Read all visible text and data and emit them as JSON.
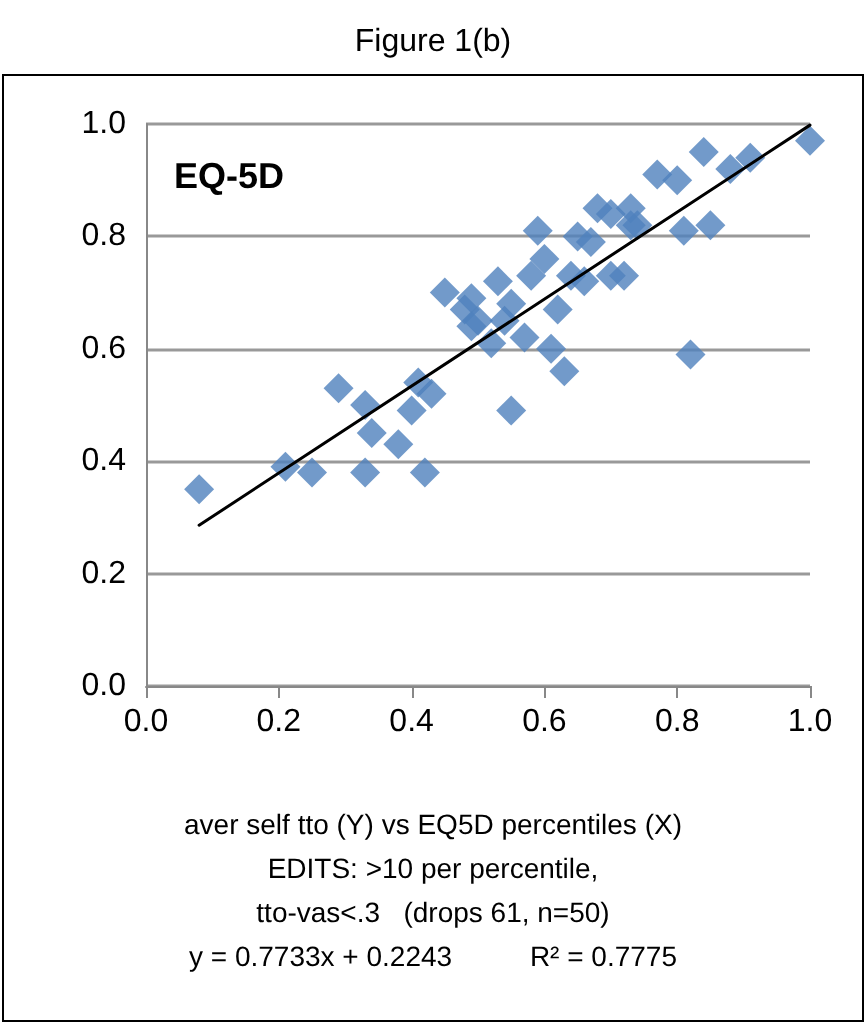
{
  "chart_data": {
    "type": "scatter",
    "title": "Figure 1(b)",
    "annotations": [
      "EQ-5D",
      "aver self tto (Y) vs EQ5D percentiles (X)",
      "EDITS: >10 per percentile,",
      "tto-vas<.3   (drops 61, n=50)",
      "y = 0.7733x + 0.2243          R² = 0.7775"
    ],
    "xlim": [
      0,
      1
    ],
    "xticks": [
      {
        "value": 0,
        "label": "0.0"
      },
      0.2,
      0.4,
      0.6,
      0.8,
      {
        "value": 1,
        "label": "1.0"
      }
    ],
    "ylim": [
      0,
      1
    ],
    "yticks": [
      {
        "value": 0,
        "label": "0.0"
      },
      0.2,
      0.4,
      0.6,
      0.8,
      {
        "value": 1,
        "label": "1.0"
      }
    ],
    "grid": "y",
    "marker": "diamond",
    "series": [
      {
        "color": "#4f81bd",
        "x": [
          0.08,
          0.21,
          0.25,
          0.29,
          0.33,
          0.34,
          0.33,
          0.38,
          0.4,
          0.41,
          0.42,
          0.43,
          0.45,
          0.49,
          0.48,
          0.49,
          0.5,
          0.53,
          0.52,
          0.54,
          0.55,
          0.57,
          0.55,
          0.58,
          0.6,
          0.59,
          0.62,
          0.61,
          0.63,
          0.64,
          0.65,
          0.67,
          0.68,
          0.66,
          0.7,
          0.72,
          0.7,
          0.73,
          0.74,
          0.73,
          0.77,
          0.8,
          0.81,
          0.85,
          0.82,
          0.84,
          0.88,
          0.91,
          1.0
        ],
        "values": [
          0.35,
          0.39,
          0.38,
          0.53,
          0.5,
          0.45,
          0.38,
          0.43,
          0.49,
          0.54,
          0.38,
          0.52,
          0.7,
          0.69,
          0.67,
          0.64,
          0.65,
          0.72,
          0.61,
          0.65,
          0.68,
          0.62,
          0.49,
          0.73,
          0.76,
          0.81,
          0.67,
          0.6,
          0.56,
          0.73,
          0.8,
          0.79,
          0.85,
          0.72,
          0.73,
          0.73,
          0.84,
          0.85,
          0.82,
          0.82,
          0.91,
          0.9,
          0.81,
          0.82,
          0.59,
          0.95,
          0.92,
          0.94,
          0.97
        ]
      },
      {
        "type": "line",
        "color": "#000000",
        "marker": "none",
        "x": [
          0.08,
          1.0
        ],
        "values": [
          0.286,
          0.998
        ]
      }
    ]
  }
}
